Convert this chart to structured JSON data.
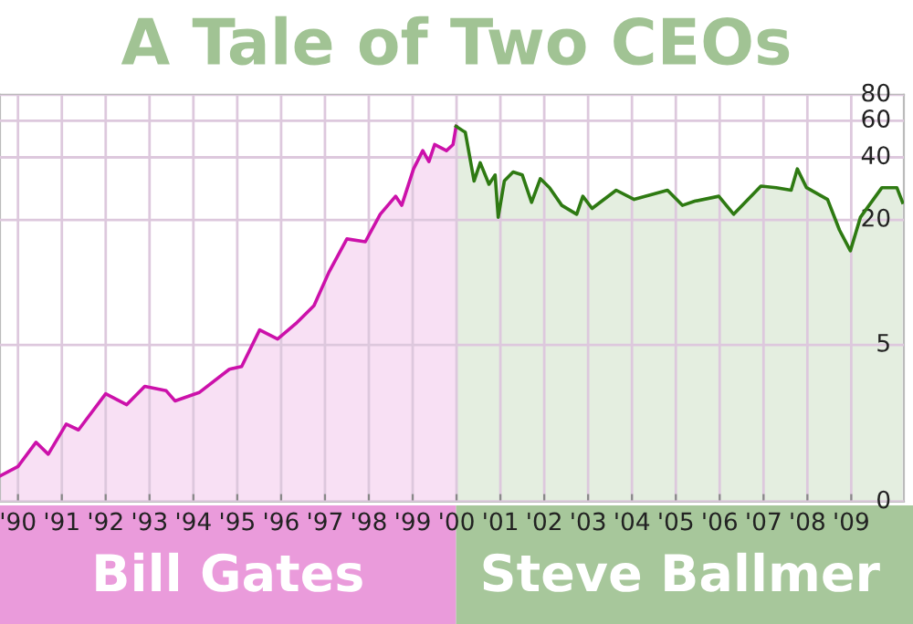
{
  "chart_data": {
    "type": "area",
    "title": "A Tale of Two CEOs",
    "log": "y",
    "grid": true,
    "legend": "bottom",
    "xlim": [
      1989.59,
      2010.2
    ],
    "xticks": [
      {
        "value": 1990,
        "label": "'90"
      },
      {
        "value": 1991,
        "label": "'91"
      },
      {
        "value": 1992,
        "label": "'92"
      },
      {
        "value": 1993,
        "label": "'93"
      },
      {
        "value": 1994,
        "label": "'94"
      },
      {
        "value": 1995,
        "label": "'95"
      },
      {
        "value": 1996,
        "label": "'96"
      },
      {
        "value": 1997,
        "label": "'97"
      },
      {
        "value": 1998,
        "label": "'98"
      },
      {
        "value": 1999,
        "label": "'99"
      },
      {
        "value": 2000,
        "label": "'00"
      },
      {
        "value": 2001,
        "label": "'01"
      },
      {
        "value": 2002,
        "label": "'02"
      },
      {
        "value": 2003,
        "label": "'03"
      },
      {
        "value": 2004,
        "label": "'04"
      },
      {
        "value": 2005,
        "label": "'05"
      },
      {
        "value": 2006,
        "label": "'06"
      },
      {
        "value": 2007,
        "label": "'07"
      },
      {
        "value": 2008,
        "label": "'08"
      },
      {
        "value": 2009,
        "label": "'09"
      }
    ],
    "ylim": [
      0,
      80
    ],
    "yticks": [
      0,
      5,
      20,
      40,
      60,
      80
    ],
    "series": [
      {
        "name": "Bill Gates",
        "color": "#cc11aa",
        "x": [
          1989.59,
          1990.0,
          1990.41,
          1990.69,
          1991.1,
          1991.38,
          1992.0,
          1992.48,
          1992.89,
          1993.38,
          1993.58,
          1994.13,
          1994.82,
          1995.1,
          1995.51,
          1995.92,
          1996.33,
          1996.75,
          1997.09,
          1997.5,
          1997.92,
          1998.26,
          1998.61,
          1998.75,
          1999.02,
          1999.23,
          1999.37,
          1999.5,
          1999.77,
          1999.92,
          1999.99
        ],
        "values": [
          1.17,
          1.3,
          1.7,
          1.49,
          2.08,
          1.95,
          2.91,
          2.58,
          3.16,
          3.01,
          2.69,
          2.95,
          3.82,
          3.94,
          5.91,
          5.34,
          6.32,
          7.74,
          11.2,
          16.2,
          15.7,
          21.3,
          26.0,
          23.5,
          35.2,
          43.1,
          38.2,
          46.1,
          43.1,
          46.1,
          56.4
        ]
      },
      {
        "name": "Steve Ballmer",
        "color": "#2e7a12",
        "x": [
          1999.99,
          2000.2,
          2000.4,
          2000.54,
          2000.74,
          2000.88,
          2000.95,
          2001.09,
          2001.29,
          2001.5,
          2001.71,
          2001.91,
          2002.12,
          2002.4,
          2002.74,
          2002.88,
          2003.09,
          2003.64,
          2004.05,
          2004.81,
          2005.15,
          2005.43,
          2005.98,
          2006.32,
          2006.94,
          2007.29,
          2007.63,
          2007.77,
          2007.98,
          2008.46,
          2008.73,
          2008.98,
          2009.21,
          2009.7,
          2010.04,
          2010.17
        ],
        "values": [
          56.4,
          52.8,
          30.8,
          37.7,
          29.7,
          32.9,
          20.6,
          30.8,
          34.0,
          32.9,
          24.3,
          31.6,
          28.6,
          23.5,
          21.3,
          26.0,
          22.7,
          27.8,
          25.1,
          27.8,
          23.5,
          24.6,
          26.0,
          21.3,
          29.1,
          28.6,
          27.8,
          35.2,
          28.6,
          25.1,
          17.9,
          14.2,
          20.6,
          28.6,
          28.6,
          24.3
        ]
      }
    ]
  }
}
